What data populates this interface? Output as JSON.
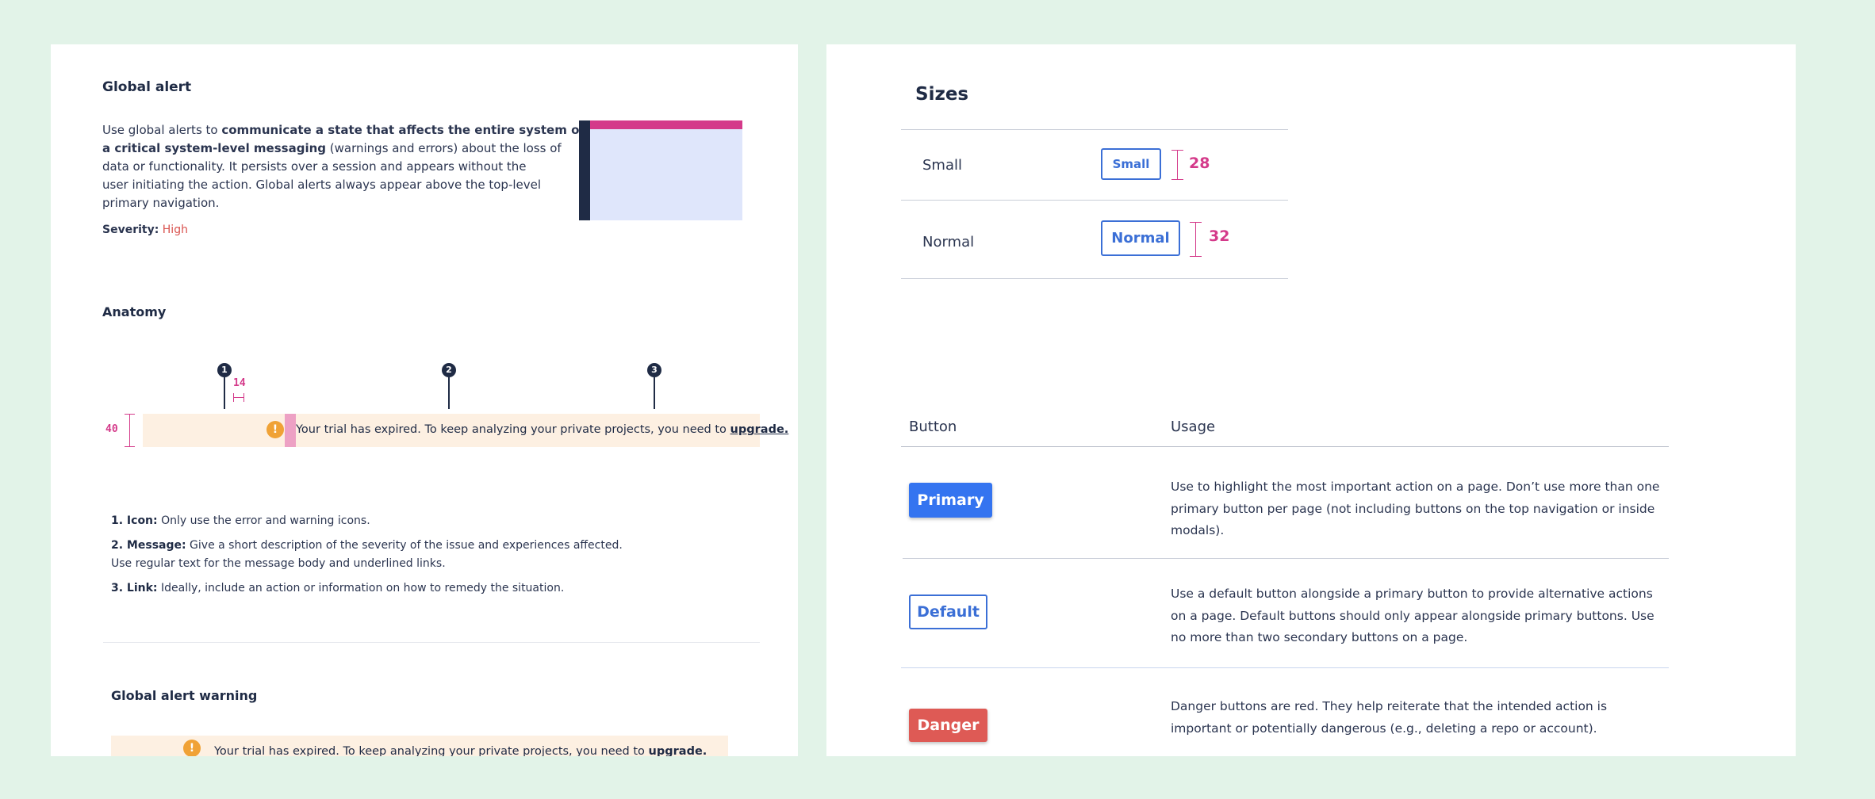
{
  "left": {
    "title": "Global alert",
    "intro": {
      "lead": "Use global alerts to ",
      "bold1": "communicate a state that affects the entire system or",
      "bold2": "a critical system-level messaging",
      "line2_rest": " (warnings and errors) about the loss of",
      "line3": "data or functionality. It persists over a session and appears without the",
      "line4": "user initiating the action. Global alerts always appear above the top-level",
      "line5": "primary navigation."
    },
    "severity_label": "Severity:",
    "severity_value": "High",
    "anatomy_title": "Anatomy",
    "markers": [
      "1",
      "2",
      "3"
    ],
    "spacing_label": "14",
    "height_label": "40",
    "alert": {
      "icon": "warning-icon",
      "message": "Your trial has expired. To keep analyzing your private projects, you need to ",
      "link": "upgrade."
    },
    "anatomy_notes": [
      {
        "label": "1. Icon:",
        "text": " Only use the error and warning icons."
      },
      {
        "label": "2. Message:",
        "text": " Give a short description of the severity of the issue and experiences affected.",
        "line2": "Use regular text for the message body and underlined links."
      },
      {
        "label": "3. Link:",
        "text": " Ideally, include an action or information on how to remedy the situation."
      }
    ],
    "warning_title": "Global alert warning",
    "warning_alert": {
      "message": "Your trial has expired. To keep analyzing your private projects, you need to ",
      "link": "upgrade."
    },
    "colors": {
      "accent": "#d43a8a",
      "navy": "#1f2b45",
      "alert_bg": "#fdf0e2",
      "preview_bg": "#dfe6fb"
    }
  },
  "right": {
    "sizes_title": "Sizes",
    "sizes": [
      {
        "name": "Small",
        "button": "Small",
        "height": "28"
      },
      {
        "name": "Normal",
        "button": "Normal",
        "height": "32"
      }
    ],
    "table_headers": {
      "button": "Button",
      "usage": "Usage"
    },
    "rows": [
      {
        "button": "Primary",
        "usage": "Use to highlight the most important action on a page. Don’t use more than one primary button per page (not including buttons on the top navigation or inside modals)."
      },
      {
        "button": "Default",
        "usage": "Use a default button alongside a primary button to provide alternative actions on a page. Default buttons should only appear alongside primary buttons. Use no more than two secondary buttons on a page."
      },
      {
        "button": "Danger",
        "usage": "Danger buttons are red. They help reiterate that the intended action is important or potentially dangerous (e.g., deleting a repo or account)."
      }
    ],
    "colors": {
      "primary": "#3474f0",
      "outline": "#3b6fd6",
      "danger": "#de5a55"
    }
  }
}
